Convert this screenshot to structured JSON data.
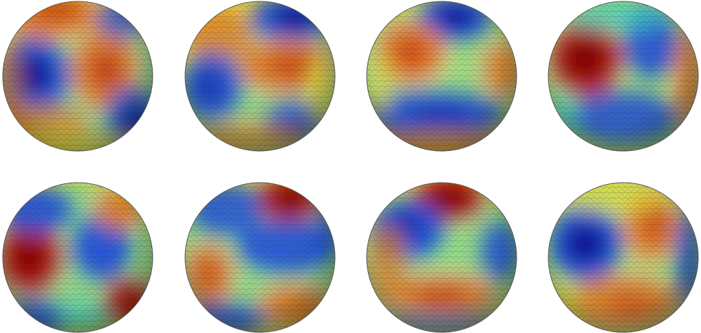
{
  "figure": {
    "colormap": "jet",
    "colors": {
      "deep_blue": "#0a0a9a",
      "blue": "#2050e0",
      "cyan": "#40d8d0",
      "yellow": "#f0e840",
      "orange": "#f08020",
      "red": "#c01808",
      "dark_red": "#800000",
      "mesh_line": "#203040",
      "background": "#ffffff"
    },
    "spheres": [
      {
        "id": "s1",
        "row": 1,
        "col": 1
      },
      {
        "id": "s2",
        "row": 1,
        "col": 2
      },
      {
        "id": "s3",
        "row": 1,
        "col": 3
      },
      {
        "id": "s4",
        "row": 1,
        "col": 4
      },
      {
        "id": "s5",
        "row": 2,
        "col": 1
      },
      {
        "id": "s6",
        "row": 2,
        "col": 2
      },
      {
        "id": "s7",
        "row": 2,
        "col": 3
      },
      {
        "id": "s8",
        "row": 2,
        "col": 4
      }
    ]
  }
}
